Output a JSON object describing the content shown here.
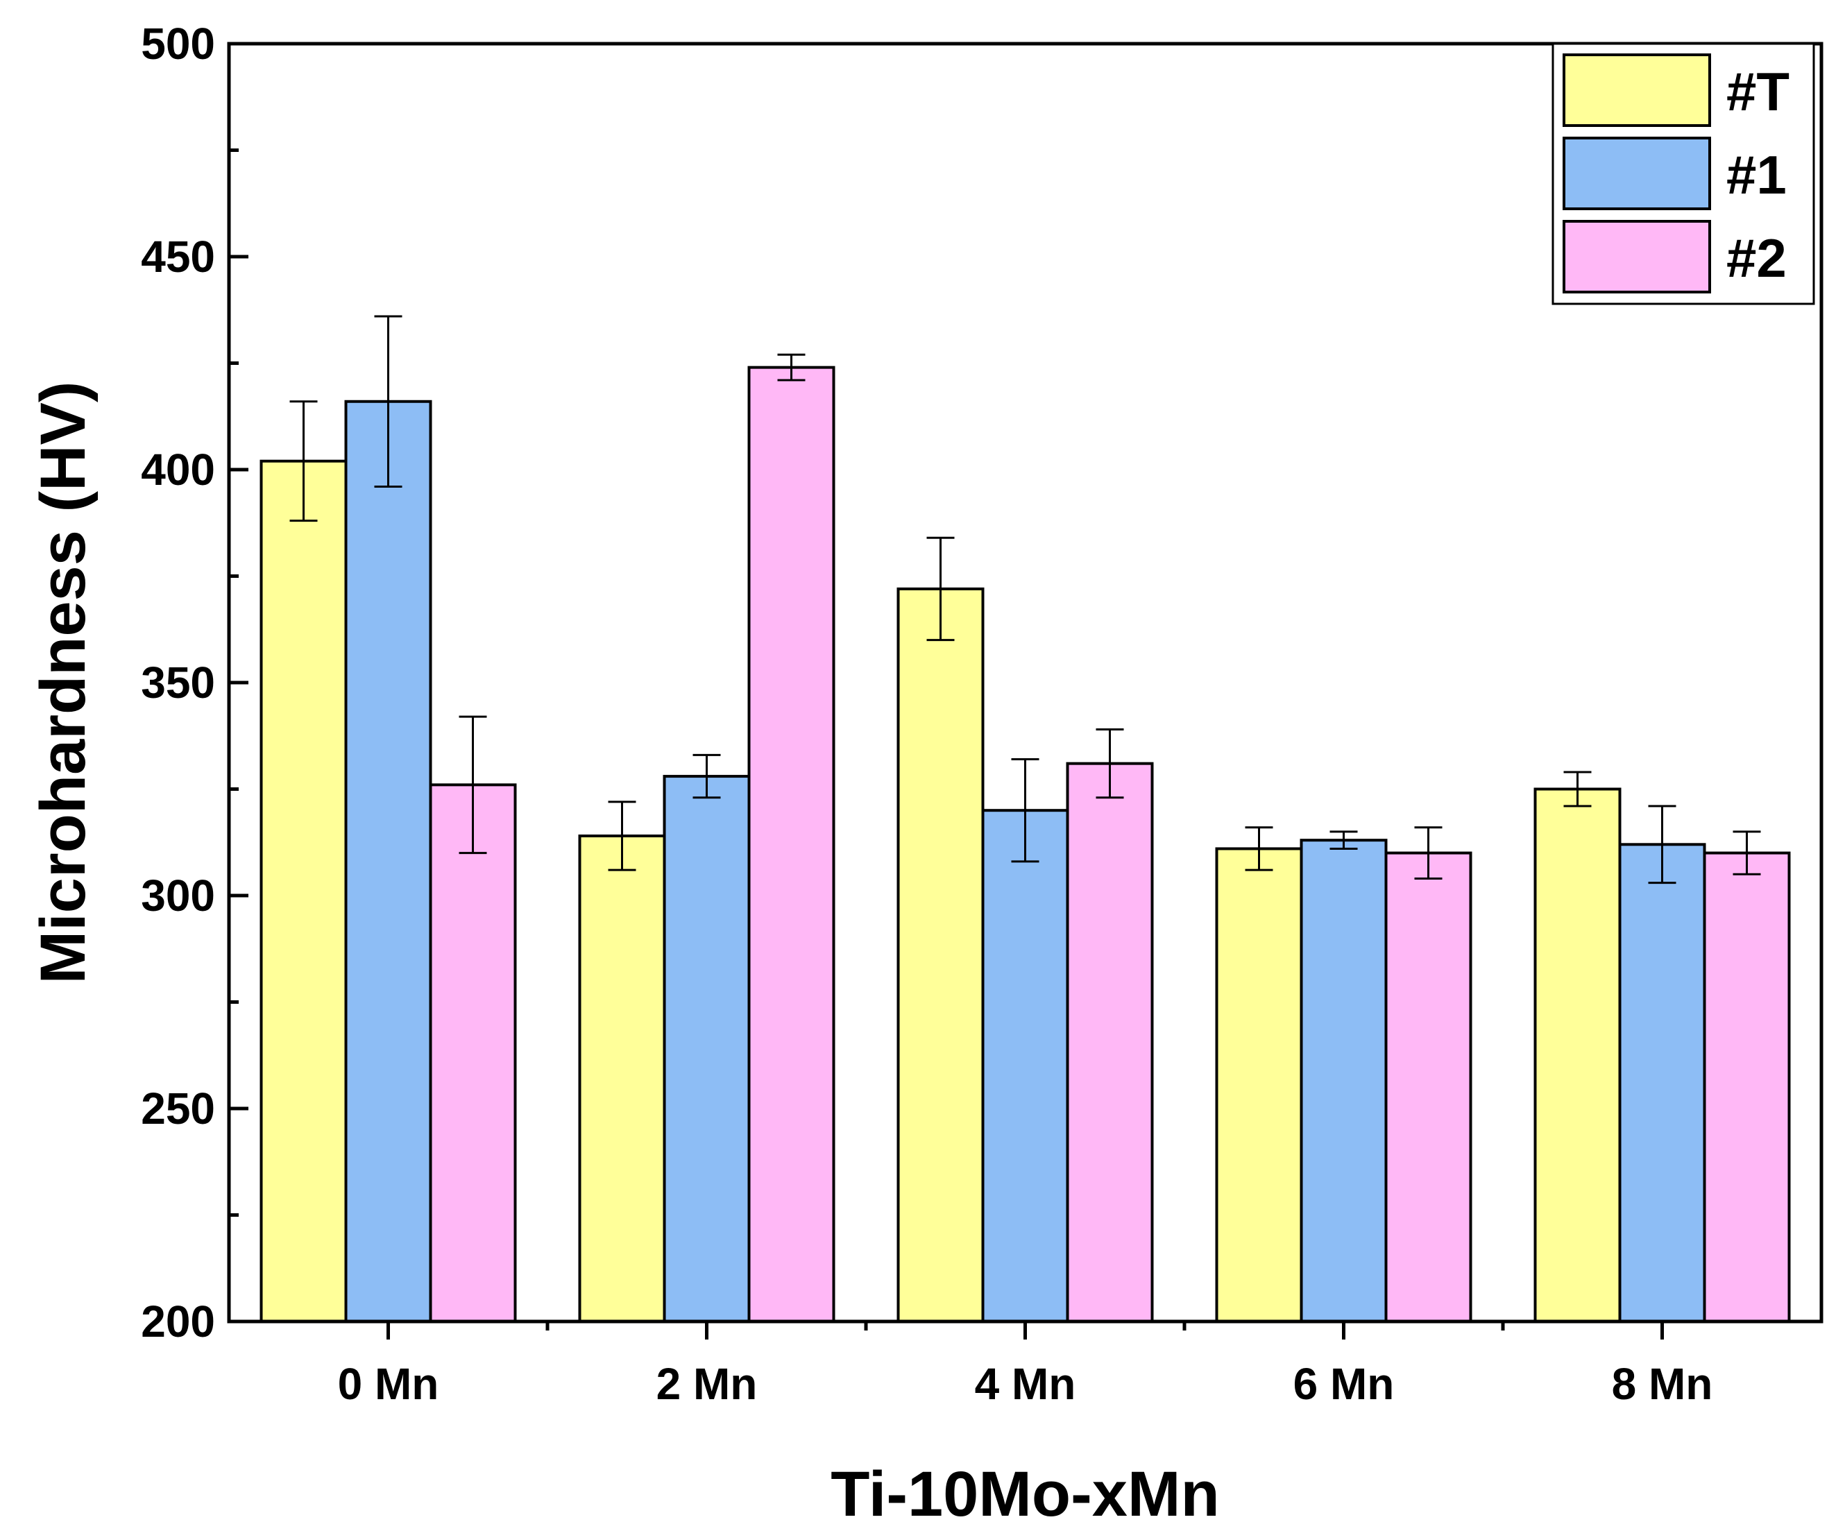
{
  "chart_data": {
    "type": "bar",
    "title": "",
    "xlabel": "Ti-10Mo-xMn",
    "ylabel": "Microhardness (HV)",
    "ylim": [
      200,
      500
    ],
    "yticks": [
      200,
      250,
      300,
      350,
      400,
      450,
      500
    ],
    "yticklabels": [
      "200",
      "250",
      "300",
      "350",
      "400",
      "450",
      "500"
    ],
    "categories": [
      "0 Mn",
      "2 Mn",
      "4 Mn",
      "6 Mn",
      "8 Mn"
    ],
    "grid": false,
    "legend_position": "top-right",
    "series": [
      {
        "name": "#T",
        "color": "#FFFF99",
        "values": [
          402,
          314,
          372,
          311,
          325
        ],
        "errors": [
          14,
          8,
          12,
          5,
          4
        ]
      },
      {
        "name": "#1",
        "color": "#8DBDF5",
        "values": [
          416,
          328,
          320,
          313,
          312
        ],
        "errors": [
          20,
          5,
          12,
          2,
          9
        ]
      },
      {
        "name": "#2",
        "color": "#FFB8F6",
        "values": [
          326,
          424,
          331,
          310,
          310
        ],
        "errors": [
          16,
          3,
          8,
          6,
          5
        ]
      }
    ]
  }
}
